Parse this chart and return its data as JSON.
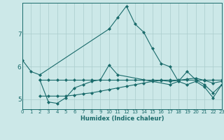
{
  "xlabel": "Humidex (Indice chaleur)",
  "x_ticks": [
    0,
    1,
    2,
    3,
    4,
    5,
    6,
    7,
    8,
    9,
    10,
    11,
    12,
    13,
    14,
    15,
    16,
    17,
    18,
    19,
    20,
    21,
    22,
    23
  ],
  "xlim": [
    0,
    23
  ],
  "ylim": [
    4.7,
    7.95
  ],
  "y_ticks": [
    5,
    6,
    7
  ],
  "bg_color": "#cce8e8",
  "grid_color": "#aacccc",
  "line_color": "#1a6b6b",
  "line1_x": [
    0,
    1,
    2,
    10,
    11,
    12,
    13,
    14,
    15,
    16,
    17,
    18,
    19,
    20,
    21,
    22,
    23
  ],
  "line1_y": [
    6.2,
    5.85,
    5.75,
    7.15,
    7.5,
    7.85,
    7.3,
    7.05,
    6.55,
    6.1,
    6.0,
    5.55,
    5.85,
    5.6,
    5.45,
    5.2,
    5.45
  ],
  "line2_x": [
    2,
    3,
    4,
    5,
    6,
    7,
    8,
    9,
    10,
    11,
    17,
    18,
    19,
    20,
    21,
    22,
    23
  ],
  "line2_y": [
    5.6,
    4.92,
    4.88,
    5.05,
    5.35,
    5.45,
    5.55,
    5.6,
    6.05,
    5.75,
    5.45,
    5.55,
    5.45,
    5.55,
    5.38,
    5.05,
    5.45
  ],
  "line3_x": [
    2,
    3,
    4,
    5,
    6,
    7,
    8,
    9,
    10,
    11,
    12,
    13,
    14,
    15,
    16,
    17,
    18,
    19,
    20,
    21,
    22,
    23
  ],
  "line3_y": [
    5.6,
    5.6,
    5.6,
    5.6,
    5.6,
    5.6,
    5.6,
    5.6,
    5.6,
    5.6,
    5.6,
    5.6,
    5.6,
    5.6,
    5.6,
    5.6,
    5.6,
    5.6,
    5.6,
    5.6,
    5.6,
    5.6
  ],
  "line4_x": [
    2,
    3,
    4,
    5,
    6,
    7,
    8,
    9,
    10,
    11,
    12,
    13,
    14,
    15,
    16,
    17,
    18,
    19,
    20,
    21,
    22,
    23
  ],
  "line4_y": [
    5.1,
    5.1,
    5.1,
    5.1,
    5.13,
    5.17,
    5.2,
    5.25,
    5.3,
    5.35,
    5.4,
    5.45,
    5.5,
    5.55,
    5.58,
    5.55,
    5.58,
    5.62,
    5.65,
    5.58,
    5.5,
    5.55
  ]
}
